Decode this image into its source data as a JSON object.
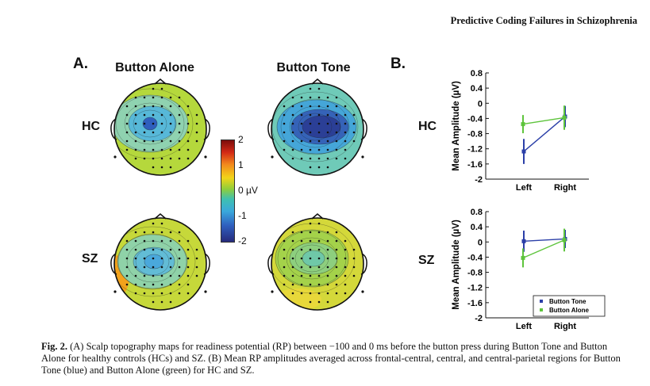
{
  "running_head": "Predictive Coding Failures in Schizophrenia",
  "panel_a": {
    "label": "A.",
    "columns": [
      "Button Alone",
      "Button Tone"
    ],
    "rows": [
      "HC",
      "SZ"
    ],
    "colorbar_ticks": [
      "2",
      "1",
      "0 µV",
      "-1",
      "-2"
    ],
    "colors": {
      "high": "#7b0c0c",
      "zero": "#8fce3a",
      "low": "#262a7c"
    }
  },
  "panel_b": {
    "label": "B.",
    "rows": [
      "HC",
      "SZ"
    ],
    "legend": [
      "Button Tone",
      "Button Alone"
    ],
    "colors": {
      "button_tone": "#2b3fa8",
      "button_alone": "#5ec43c"
    }
  },
  "chart_data": [
    {
      "type": "line",
      "row": "HC",
      "categories": [
        "Left",
        "Right"
      ],
      "ylabel": "Mean Amplitude (µV)",
      "ylim": [
        -2,
        0.8
      ],
      "yticks": [
        "0.8",
        "0.4",
        "0",
        "-0.4",
        "-0.8",
        "-1.2",
        "-1.6",
        "-2"
      ],
      "series": [
        {
          "name": "Button Tone",
          "values": [
            -1.27,
            -0.35
          ],
          "errors": [
            0.33,
            0.28
          ]
        },
        {
          "name": "Button Alone",
          "values": [
            -0.55,
            -0.38
          ],
          "errors": [
            0.24,
            0.32
          ]
        }
      ]
    },
    {
      "type": "line",
      "row": "SZ",
      "categories": [
        "Left",
        "Right"
      ],
      "ylabel": "Mean Amplitude (µV)",
      "ylim": [
        -2,
        0.8
      ],
      "yticks": [
        "0.8",
        "0.4",
        "0",
        "-0.4",
        "-0.8",
        "-1.2",
        "-1.6",
        "-2"
      ],
      "legend": "bottom-right",
      "series": [
        {
          "name": "Button Tone",
          "values": [
            0.02,
            0.08
          ],
          "errors": [
            0.28,
            0.24
          ]
        },
        {
          "name": "Button Alone",
          "values": [
            -0.42,
            0.05
          ],
          "errors": [
            0.25,
            0.3
          ]
        }
      ]
    }
  ],
  "caption": {
    "label": "Fig. 2.",
    "text": "(A) Scalp topography maps for readiness potential (RP) between −100 and 0 ms before the button press during Button Tone and Button Alone for healthy controls (HCs) and SZ. (B) Mean RP amplitudes averaged across frontal-central, central, and central-parietal regions for Button Tone (blue) and Button Alone (green) for HC and SZ."
  }
}
